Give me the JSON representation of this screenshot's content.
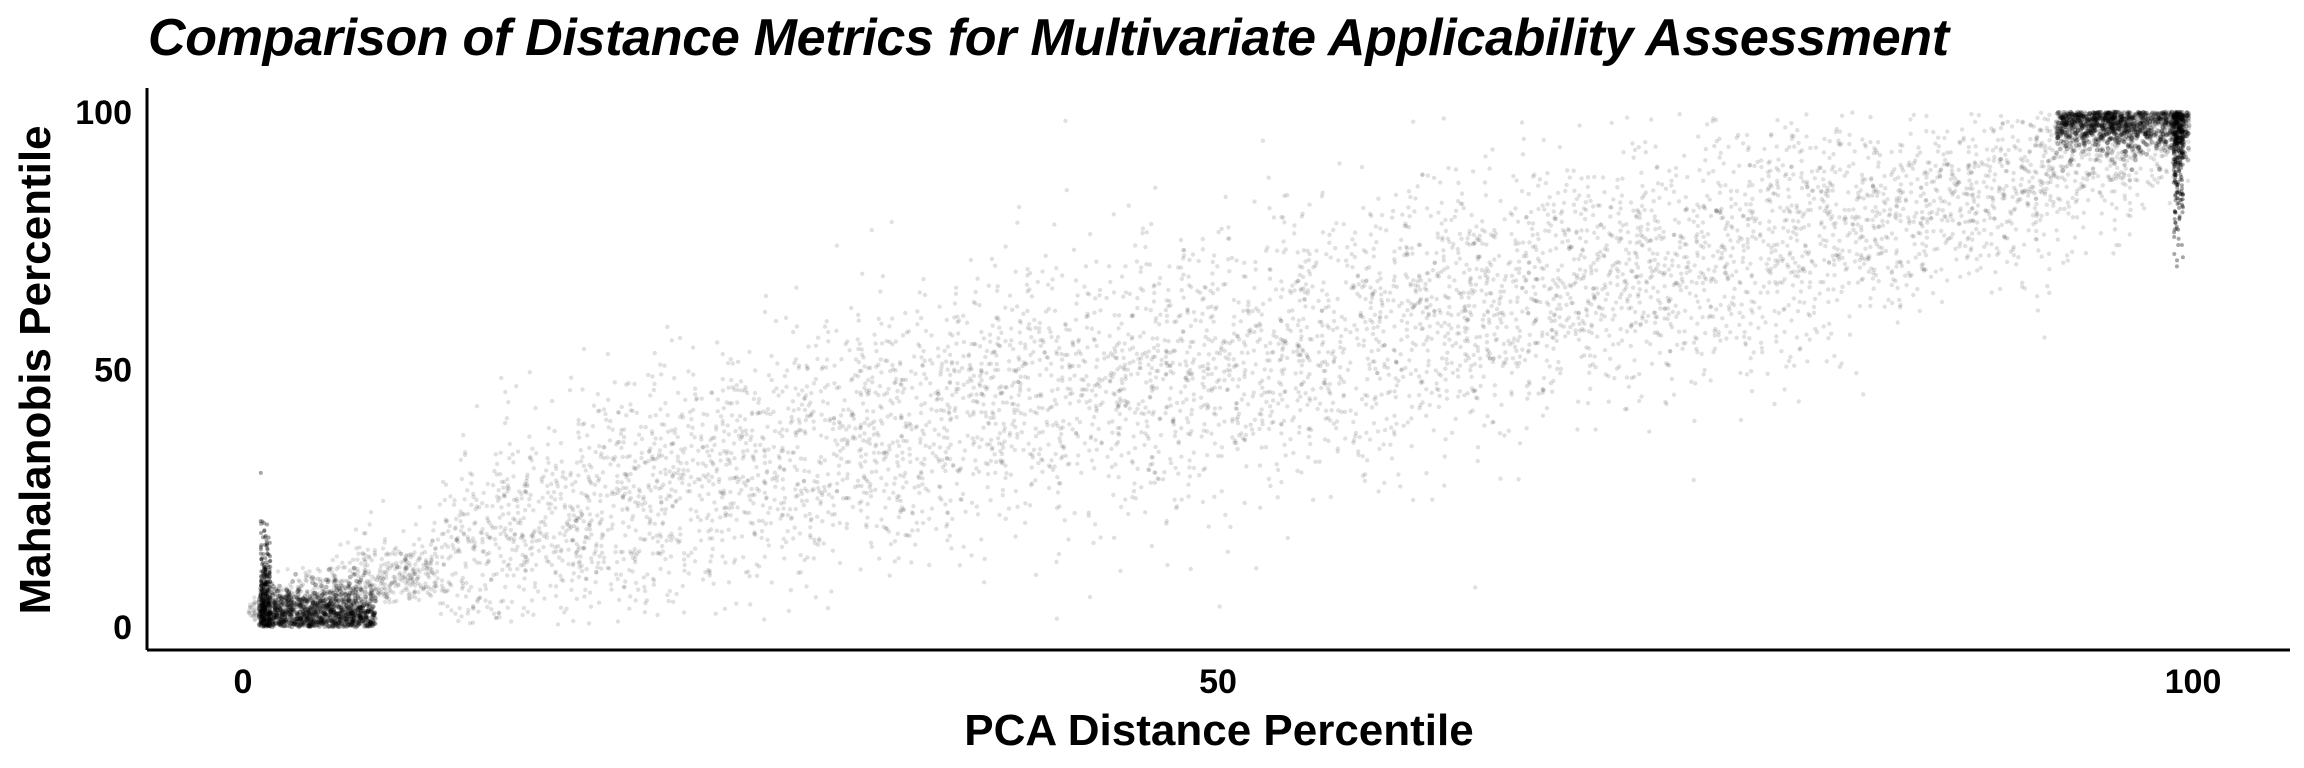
{
  "chart_data": {
    "type": "scatter",
    "title": "Comparison of Distance Metrics for Multivariate Applicability Assessment",
    "xlabel": "PCA Distance Percentile",
    "ylabel": "Mahalanobis Percentile",
    "xlim": [
      0,
      100
    ],
    "ylim": [
      0,
      100
    ],
    "x_ticks": [
      0,
      50,
      100
    ],
    "y_ticks": [
      0,
      50,
      100
    ],
    "grid": false,
    "point_color": "#000000",
    "point_opacity": 0.12,
    "density_bands": [
      {
        "x": 1,
        "y_median": 2,
        "y_spread": 3
      },
      {
        "x": 5,
        "y_median": 7,
        "y_spread": 10
      },
      {
        "x": 10,
        "y_median": 13,
        "y_spread": 14
      },
      {
        "x": 20,
        "y_median": 25,
        "y_spread": 16
      },
      {
        "x": 30,
        "y_median": 35,
        "y_spread": 17
      },
      {
        "x": 40,
        "y_median": 44,
        "y_spread": 18
      },
      {
        "x": 50,
        "y_median": 52,
        "y_spread": 18
      },
      {
        "x": 60,
        "y_median": 60,
        "y_spread": 18
      },
      {
        "x": 70,
        "y_median": 68,
        "y_spread": 17
      },
      {
        "x": 80,
        "y_median": 76,
        "y_spread": 16
      },
      {
        "x": 90,
        "y_median": 86,
        "y_spread": 12
      },
      {
        "x": 99,
        "y_median": 97,
        "y_spread": 4
      }
    ]
  }
}
